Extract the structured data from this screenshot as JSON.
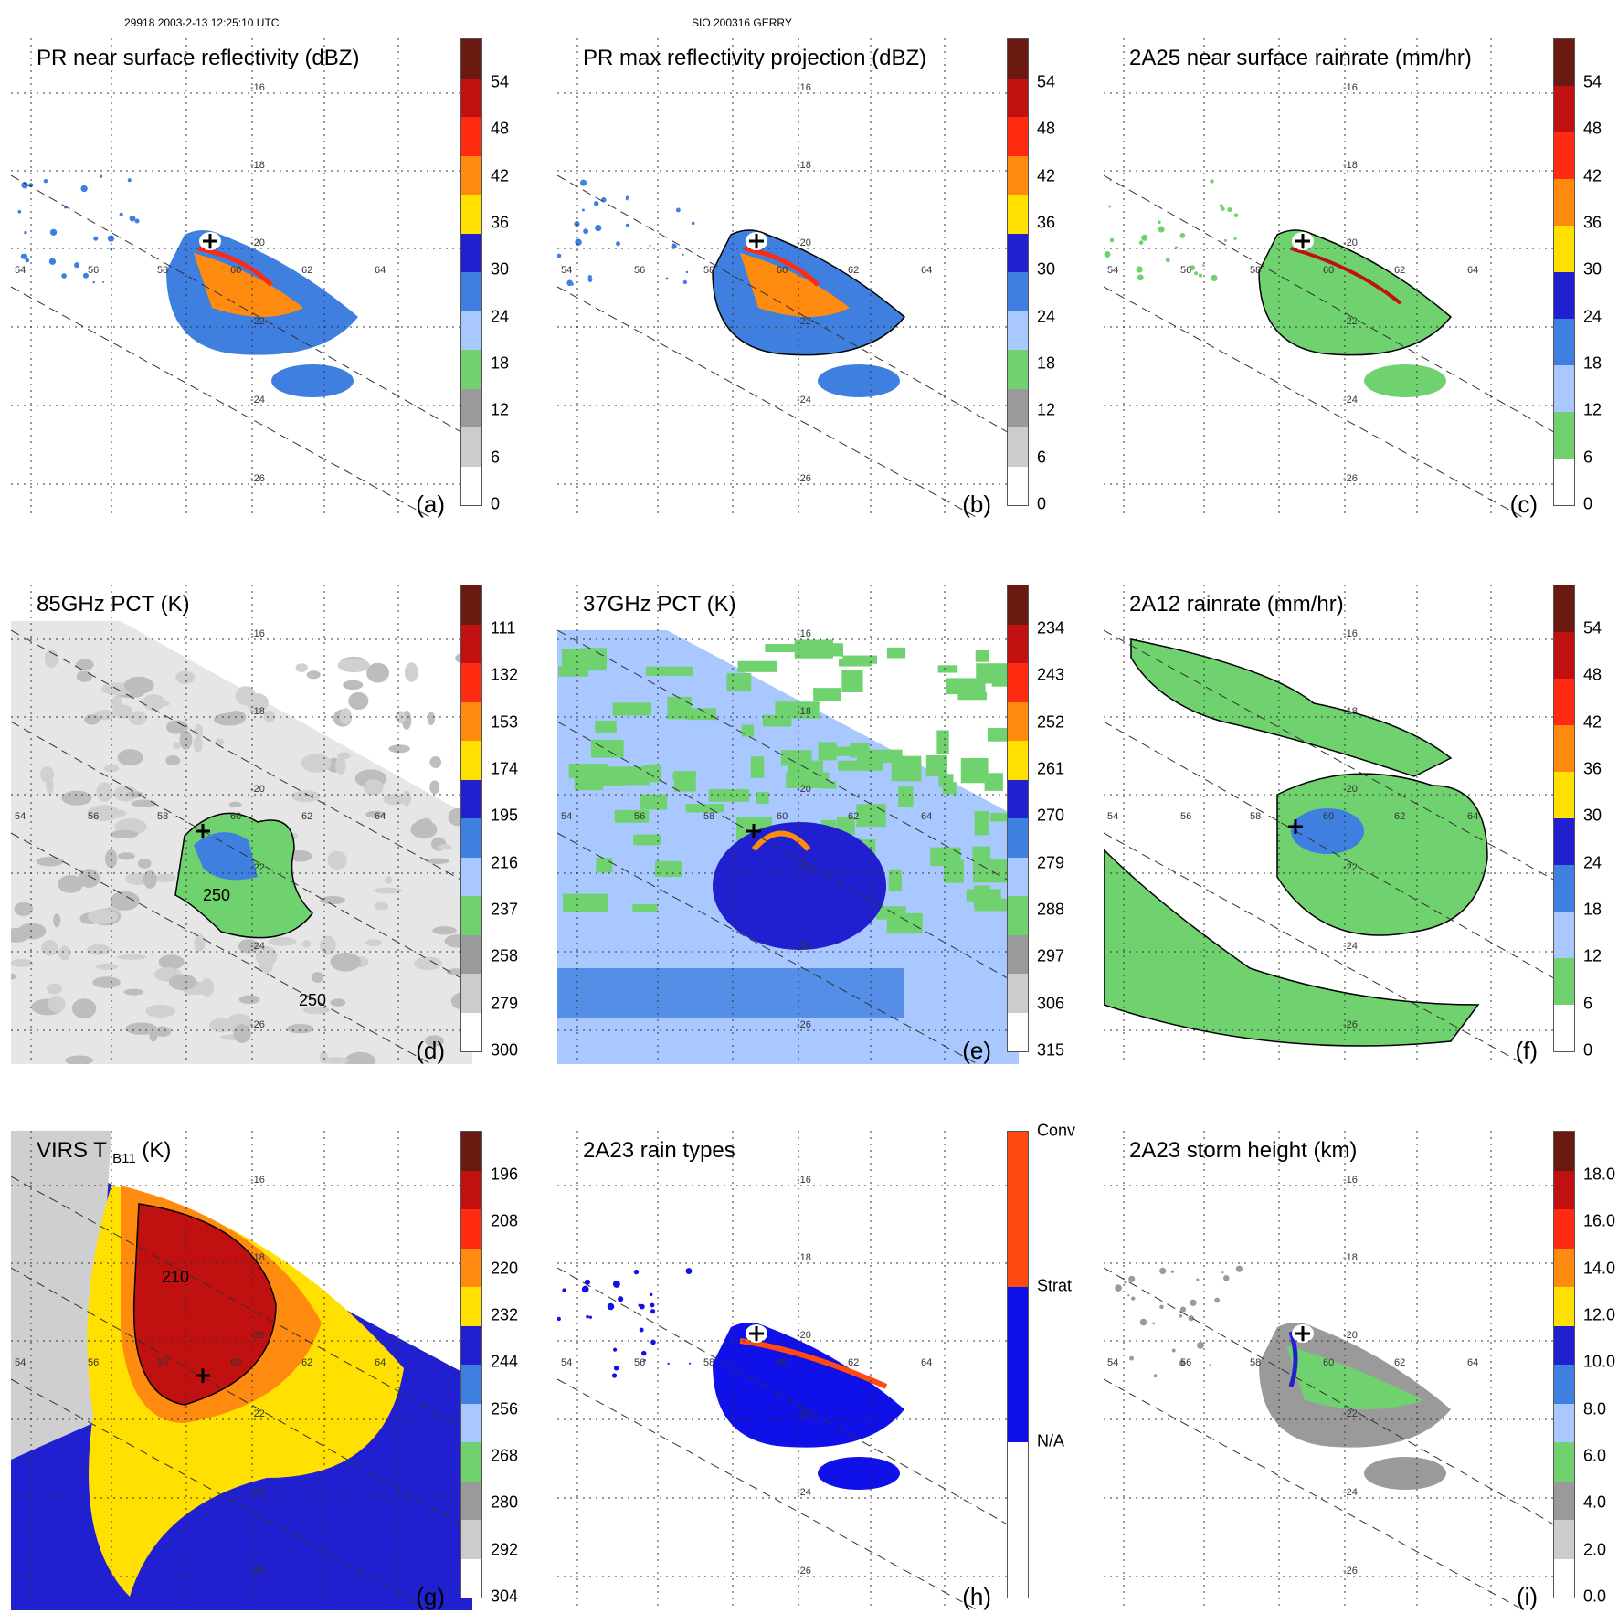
{
  "header": {
    "orbit_info": "29918 2003-2-13 12:25:10 UTC",
    "storm_info": "SIO 200316 GERRY"
  },
  "chart_data": [
    {
      "type": "heatmap",
      "id": "a",
      "title": "PR near surface reflectivity (dBZ)",
      "panel_label": "(a)",
      "colorbar_ticks": [
        "54",
        "48",
        "42",
        "36",
        "30",
        "24",
        "18",
        "12",
        "6",
        "0"
      ],
      "colors": [
        "#6b1a12",
        "#c01010",
        "#ff2b10",
        "#ff8a10",
        "#ffe000",
        "#2020d0",
        "#3f7fe0",
        "#a9c8ff",
        "#6fd26f",
        "#9a9a9a",
        "#cccccc",
        "#ffffff"
      ]
    },
    {
      "type": "heatmap",
      "id": "b",
      "title": "PR max reflectivity projection (dBZ)",
      "panel_label": "(b)",
      "colorbar_ticks": [
        "54",
        "48",
        "42",
        "36",
        "30",
        "24",
        "18",
        "12",
        "6",
        "0"
      ],
      "colors": [
        "#6b1a12",
        "#c01010",
        "#ff2b10",
        "#ff8a10",
        "#ffe000",
        "#2020d0",
        "#3f7fe0",
        "#a9c8ff",
        "#6fd26f",
        "#9a9a9a",
        "#cccccc",
        "#ffffff"
      ]
    },
    {
      "type": "heatmap",
      "id": "c",
      "title": "2A25 near surface rainrate (mm/hr)",
      "panel_label": "(c)",
      "colorbar_ticks": [
        "54",
        "48",
        "42",
        "36",
        "30",
        "24",
        "18",
        "12",
        "6",
        "0"
      ],
      "colors": [
        "#6b1a12",
        "#c01010",
        "#ff2b10",
        "#ff8a10",
        "#ffe000",
        "#2020d0",
        "#3f7fe0",
        "#a9c8ff",
        "#6fd26f",
        "#ffffff"
      ]
    },
    {
      "type": "heatmap",
      "id": "d",
      "title": "85GHz PCT (K)",
      "panel_label": "(d)",
      "colorbar_ticks": [
        "111",
        "132",
        "153",
        "174",
        "195",
        "216",
        "237",
        "258",
        "279",
        "300"
      ],
      "contour_labels": [
        "250",
        "250"
      ],
      "colors": [
        "#6b1a12",
        "#c01010",
        "#ff2b10",
        "#ff8a10",
        "#ffe000",
        "#2020d0",
        "#3f7fe0",
        "#a9c8ff",
        "#6fd26f",
        "#9a9a9a",
        "#cccccc",
        "#ffffff"
      ]
    },
    {
      "type": "heatmap",
      "id": "e",
      "title": "37GHz PCT (K)",
      "panel_label": "(e)",
      "colorbar_ticks": [
        "234",
        "243",
        "252",
        "261",
        "270",
        "279",
        "288",
        "297",
        "306",
        "315"
      ],
      "colors": [
        "#6b1a12",
        "#c01010",
        "#ff2b10",
        "#ff8a10",
        "#ffe000",
        "#2020d0",
        "#3f7fe0",
        "#a9c8ff",
        "#6fd26f",
        "#9a9a9a",
        "#cccccc",
        "#ffffff"
      ]
    },
    {
      "type": "heatmap",
      "id": "f",
      "title": "2A12 rainrate (mm/hr)",
      "panel_label": "(f)",
      "colorbar_ticks": [
        "54",
        "48",
        "42",
        "36",
        "30",
        "24",
        "18",
        "12",
        "6",
        "0"
      ],
      "colors": [
        "#6b1a12",
        "#c01010",
        "#ff2b10",
        "#ff8a10",
        "#ffe000",
        "#2020d0",
        "#3f7fe0",
        "#a9c8ff",
        "#6fd26f",
        "#ffffff"
      ]
    },
    {
      "type": "heatmap",
      "id": "g",
      "title_main": "VIRS T",
      "title_sub": "B11",
      "title_unit": "(K)",
      "panel_label": "(g)",
      "colorbar_ticks": [
        "196",
        "208",
        "220",
        "232",
        "244",
        "256",
        "268",
        "280",
        "292",
        "304"
      ],
      "contour_labels": [
        "210"
      ],
      "colors": [
        "#6b1a12",
        "#c01010",
        "#ff2b10",
        "#ff8a10",
        "#ffe000",
        "#2020d0",
        "#3f7fe0",
        "#a9c8ff",
        "#6fd26f",
        "#9a9a9a",
        "#cccccc",
        "#ffffff"
      ]
    },
    {
      "type": "heatmap",
      "id": "h",
      "title": "2A23 rain types",
      "panel_label": "(h)",
      "colorbar_ticks": [
        "Conv",
        "Strat",
        "N/A"
      ],
      "colors": [
        "#ff4a10",
        "#1010e8",
        "#ffffff"
      ]
    },
    {
      "type": "heatmap",
      "id": "i",
      "title": "2A23 storm height (km)",
      "panel_label": "(i)",
      "colorbar_ticks": [
        "18.0",
        "16.0",
        "14.0",
        "12.0",
        "10.0",
        "8.0",
        "6.0",
        "4.0",
        "2.0",
        "0.0"
      ],
      "colors": [
        "#6b1a12",
        "#c01010",
        "#ff2b10",
        "#ff8a10",
        "#ffe000",
        "#2020d0",
        "#3f7fe0",
        "#a9c8ff",
        "#6fd26f",
        "#9a9a9a",
        "#cccccc",
        "#ffffff"
      ]
    }
  ],
  "axes": {
    "lon_labels": [
      "54",
      "56",
      "58",
      "60",
      "62",
      "64"
    ],
    "lat_labels": [
      "-16",
      "-18",
      "-20",
      "-22",
      "-24",
      "-26"
    ]
  }
}
